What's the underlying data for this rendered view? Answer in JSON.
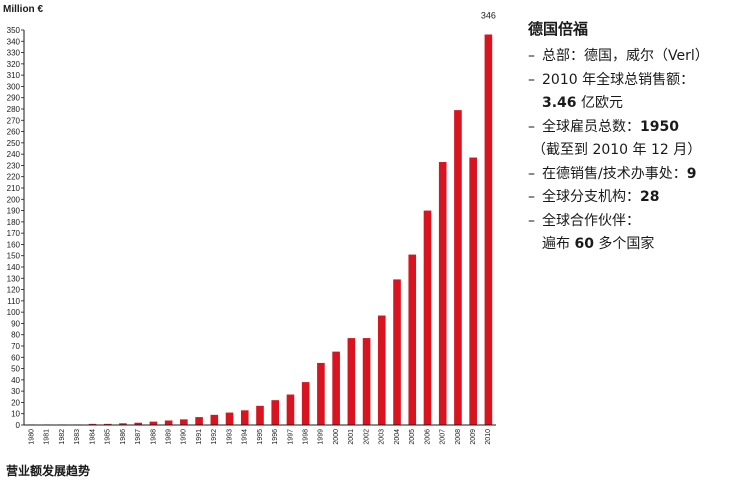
{
  "chart_data": {
    "type": "bar",
    "unit_label": "Million €",
    "xlabel": "",
    "ylabel": "",
    "caption": "营业额发展趋势",
    "categories": [
      "1980",
      "1981",
      "1982",
      "1983",
      "1984",
      "1985",
      "1986",
      "1987",
      "1988",
      "1989",
      "1990",
      "1991",
      "1992",
      "1993",
      "1994",
      "1995",
      "1996",
      "1997",
      "1998",
      "1999",
      "2000",
      "2001",
      "2002",
      "2003",
      "2004",
      "2005",
      "2006",
      "2007",
      "2008",
      "2009",
      "2010"
    ],
    "values": [
      0.5,
      0.5,
      0.5,
      0.5,
      1,
      1,
      1.5,
      2,
      3,
      4,
      5,
      7,
      9,
      11,
      13,
      17,
      22,
      27,
      38,
      55,
      65,
      77,
      77,
      97,
      129,
      151,
      190,
      233,
      279,
      237,
      346
    ],
    "ylim": [
      0,
      350
    ],
    "yticks": [
      0,
      10,
      20,
      30,
      40,
      50,
      60,
      70,
      80,
      90,
      100,
      110,
      120,
      130,
      140,
      150,
      160,
      170,
      180,
      190,
      200,
      210,
      220,
      230,
      240,
      250,
      260,
      270,
      280,
      290,
      300,
      310,
      320,
      330,
      340,
      350
    ],
    "data_labels": [
      {
        "category": "2010",
        "text": "346"
      }
    ],
    "bar_color": "#d7141f",
    "grid": false
  },
  "facts": {
    "title": "德国倍福",
    "items": [
      {
        "dash": "–",
        "normal": "总部：德国，威尔（Verl）",
        "bold": ""
      },
      {
        "dash": "–",
        "normal": "2010 年全球总销售额：",
        "bold": ""
      },
      {
        "cont": true,
        "normal": "",
        "bold": "3.46",
        "after": " 亿欧元"
      },
      {
        "dash": "–",
        "normal": "全球雇员总数：",
        "bold": "1950"
      },
      {
        "paren": true,
        "normal": "（截至到 2010 年 12 月）",
        "bold": ""
      },
      {
        "dash": "–",
        "normal": "在德销售/技术办事处：",
        "bold": "9"
      },
      {
        "dash": "–",
        "normal": "全球分支机构：",
        "bold": "28"
      },
      {
        "dash": "–",
        "normal": "全球合作伙伴：",
        "bold": ""
      },
      {
        "cont": true,
        "normal": "遍布 ",
        "bold": "60",
        "after": " 多个国家"
      }
    ]
  }
}
